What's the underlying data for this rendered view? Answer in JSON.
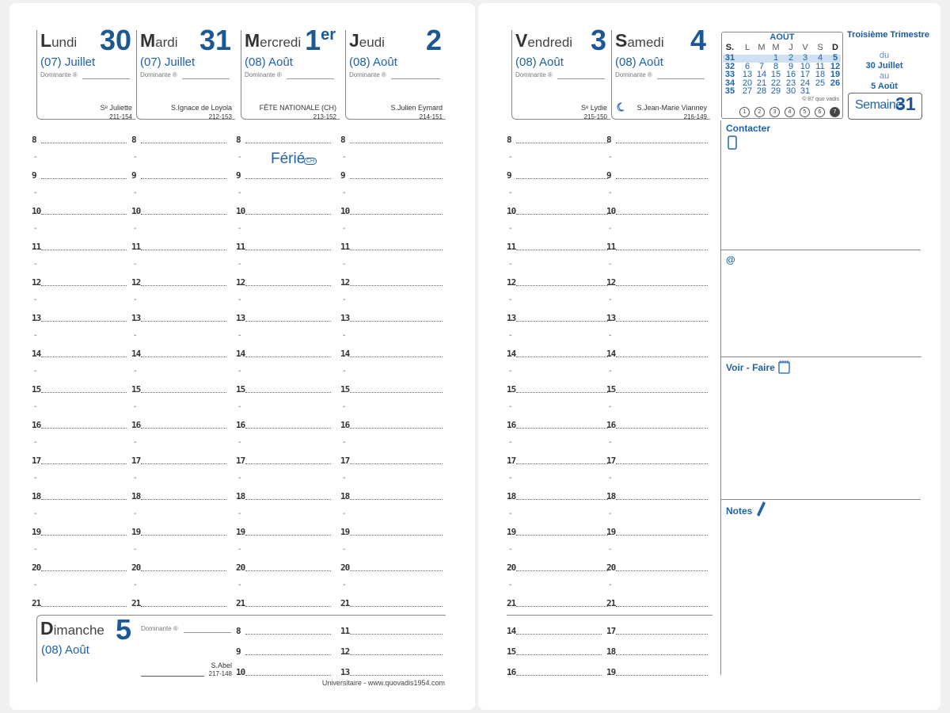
{
  "left_page": {
    "days": [
      {
        "name": "Lundi",
        "number": "30",
        "month": "(07) Juillet",
        "dominante": "Dominante ®",
        "saint": "Sᵉ Juliette",
        "day_code": "211-154"
      },
      {
        "name": "Mardi",
        "number": "31",
        "month": "(07) Juillet",
        "dominante": "Dominante ®",
        "saint": "S.Ignace de Loyola",
        "day_code": "212-153"
      },
      {
        "name": "Mercredi",
        "number": "1",
        "number_suffix": "er",
        "month": "(08) Août",
        "dominante": "Dominante ®",
        "saint": "FÊTE NATIONALE (CH)",
        "day_code": "213-152"
      },
      {
        "name": "Jeudi",
        "number": "2",
        "month": "(08) Août",
        "dominante": "Dominante ®",
        "saint": "S.Julien Eymard",
        "day_code": "214-151"
      }
    ],
    "hours": [
      8,
      9,
      10,
      11,
      12,
      13,
      14,
      15,
      16,
      17,
      18,
      19,
      20,
      21
    ],
    "holiday_note": "Férié",
    "holiday_badge": "CH",
    "sunday": {
      "name": "Dimanche",
      "number": "5",
      "month": "(08) Août",
      "dominante": "Dominante ®",
      "saint": "S.Abel",
      "day_code": "217-148",
      "hours_a": [
        8,
        9,
        10
      ],
      "hours_b": [
        11,
        12,
        13
      ]
    },
    "footer": "Universitaire - www.quovadis1954.com"
  },
  "right_page": {
    "days": [
      {
        "name": "Vendredi",
        "number": "3",
        "month": "(08) Août",
        "dominante": "Dominante ®",
        "saint": "Sᵉ Lydie",
        "day_code": "215-150"
      },
      {
        "name": "Samedi",
        "number": "4",
        "month": "(08) Août",
        "dominante": "Dominante ®",
        "saint": "S.Jean-Marie Vianney",
        "day_code": "216-149"
      }
    ],
    "hours": [
      8,
      9,
      10,
      11,
      12,
      13,
      14,
      15,
      16,
      17,
      18,
      19,
      20,
      21
    ],
    "sunday_hours_a": [
      14,
      15,
      16
    ],
    "sunday_hours_b": [
      17,
      18,
      19
    ],
    "calendar": {
      "month": "AOÛT",
      "headers": [
        "S.",
        "L",
        "M",
        "M",
        "J",
        "V",
        "S",
        "D"
      ],
      "rows": [
        [
          "31",
          null,
          null,
          "1",
          "2",
          "3",
          "4",
          "5"
        ],
        [
          "32",
          "6",
          "7",
          "8",
          "9",
          "10",
          "11",
          "12"
        ],
        [
          "33",
          "13",
          "14",
          "15",
          "16",
          "17",
          "18",
          "19"
        ],
        [
          "34",
          "20",
          "21",
          "22",
          "23",
          "24",
          "25",
          "26"
        ],
        [
          "35",
          "27",
          "28",
          "29",
          "30",
          "31",
          null,
          null
        ]
      ],
      "copyright": "© 87 quo vadis",
      "weekdays": [
        "1",
        "2",
        "3",
        "4",
        "5",
        "6",
        "7"
      ]
    },
    "quarter": {
      "title": "Troisième Trimestre",
      "from_label": "du",
      "from": "30 Juillet",
      "to_label": "au",
      "to": "5 Août",
      "week_label": "Semaine",
      "week": "31"
    },
    "sections": [
      "Contacter",
      "@",
      "Voir - Faire",
      "Notes"
    ]
  }
}
